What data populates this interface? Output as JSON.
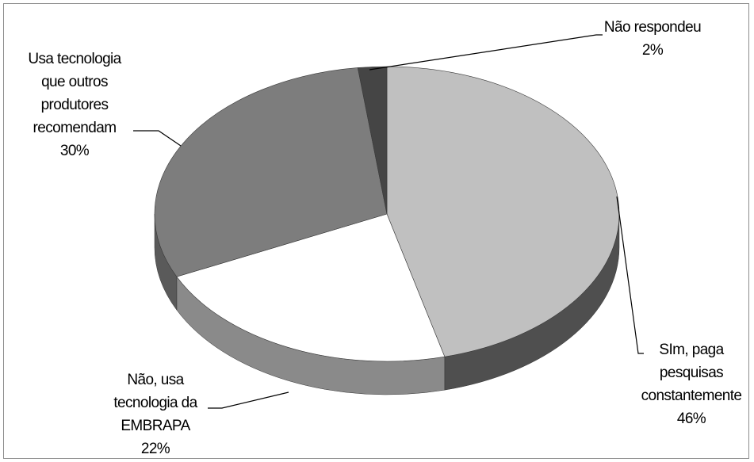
{
  "chart_data": {
    "type": "pie",
    "style": "3d",
    "slices": [
      {
        "label": "Sim, paga pesquisas constantemente",
        "label_lines": [
          "SIm, paga",
          "pesquisas",
          "constantemente"
        ],
        "value": 46,
        "pct_text": "46%",
        "color": "#c0c0c0",
        "side_color": "#4f4f4f"
      },
      {
        "label": "Não, usa tecnologia da EMBRAPA",
        "label_lines": [
          "Não, usa",
          "tecnologia da",
          "EMBRAPA"
        ],
        "value": 22,
        "pct_text": "22%",
        "color": "#ffffff",
        "side_color": "#8a8a8a"
      },
      {
        "label": "Usa tecnologia que outros produtores recomendam",
        "label_lines": [
          "Usa tecnologia",
          "que outros",
          "produtores",
          "recomendam"
        ],
        "value": 30,
        "pct_text": "30%",
        "color": "#7d7d7d",
        "side_color": "#5a5a5a"
      },
      {
        "label": "Não respondeu",
        "label_lines": [
          "Não respondeu"
        ],
        "value": 2,
        "pct_text": "2%",
        "color": "#454545",
        "side_color": "#2e2e2e"
      }
    ],
    "legend": "none",
    "data_labels": "outside with leader lines"
  }
}
